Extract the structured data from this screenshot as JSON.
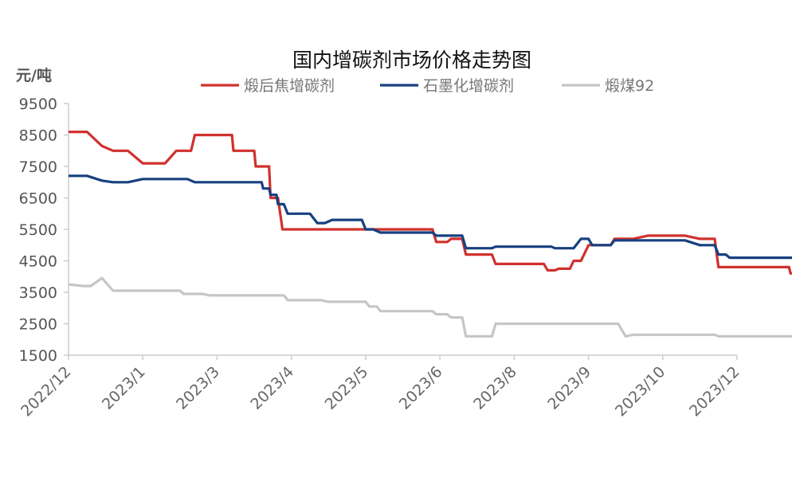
{
  "chart_data": {
    "type": "line",
    "title": "国内增碳剂市场价格走势图",
    "ylabel": "元/吨",
    "ylim": [
      1500,
      9500
    ],
    "yticks": [
      1500,
      2500,
      3500,
      4500,
      5500,
      6500,
      7500,
      8500,
      9500
    ],
    "xticks": [
      "2022/12",
      "2023/1",
      "2023/3",
      "2023/4",
      "2023/5",
      "2023/6",
      "2023/8",
      "2023/9",
      "2023/10",
      "2023/12"
    ],
    "legend_position": "top",
    "grid": false,
    "series": [
      {
        "name": "煅后焦增碳剂",
        "color": "#d0312d",
        "points": [
          [
            0,
            8600
          ],
          [
            0.25,
            8600
          ],
          [
            0.45,
            8150
          ],
          [
            0.6,
            8000
          ],
          [
            0.8,
            8000
          ],
          [
            1.0,
            7600
          ],
          [
            1.3,
            7600
          ],
          [
            1.45,
            8000
          ],
          [
            1.65,
            8000
          ],
          [
            1.7,
            8500
          ],
          [
            2.0,
            8500
          ],
          [
            2.2,
            8500
          ],
          [
            2.22,
            8000
          ],
          [
            2.5,
            8000
          ],
          [
            2.52,
            7500
          ],
          [
            2.7,
            7500
          ],
          [
            2.72,
            6500
          ],
          [
            2.82,
            6500
          ],
          [
            2.88,
            5500
          ],
          [
            3.0,
            5500
          ],
          [
            3.3,
            5500
          ],
          [
            3.8,
            5500
          ],
          [
            4.0,
            5500
          ],
          [
            4.2,
            5500
          ],
          [
            4.6,
            5500
          ],
          [
            4.9,
            5500
          ],
          [
            4.95,
            5100
          ],
          [
            5.1,
            5100
          ],
          [
            5.15,
            5200
          ],
          [
            5.3,
            5200
          ],
          [
            5.35,
            4700
          ],
          [
            5.7,
            4700
          ],
          [
            5.75,
            4400
          ],
          [
            6.1,
            4400
          ],
          [
            6.3,
            4400
          ],
          [
            6.4,
            4400
          ],
          [
            6.45,
            4200
          ],
          [
            6.55,
            4200
          ],
          [
            6.6,
            4250
          ],
          [
            6.75,
            4250
          ],
          [
            6.8,
            4500
          ],
          [
            6.9,
            4500
          ],
          [
            7.0,
            5000
          ],
          [
            7.2,
            5000
          ],
          [
            7.3,
            5000
          ],
          [
            7.35,
            5200
          ],
          [
            7.6,
            5200
          ],
          [
            7.8,
            5300
          ],
          [
            8.3,
            5300
          ],
          [
            8.5,
            5200
          ],
          [
            8.7,
            5200
          ],
          [
            8.75,
            4300
          ],
          [
            9.7,
            4300
          ],
          [
            9.72,
            4100
          ],
          [
            9.85,
            4100
          ]
        ]
      },
      {
        "name": "石墨化增碳剂",
        "color": "#17407f",
        "points": [
          [
            0,
            7200
          ],
          [
            0.25,
            7200
          ],
          [
            0.45,
            7050
          ],
          [
            0.6,
            7000
          ],
          [
            0.8,
            7000
          ],
          [
            1.0,
            7100
          ],
          [
            1.3,
            7100
          ],
          [
            1.6,
            7100
          ],
          [
            1.7,
            7000
          ],
          [
            2.0,
            7000
          ],
          [
            2.6,
            7000
          ],
          [
            2.62,
            6800
          ],
          [
            2.7,
            6800
          ],
          [
            2.72,
            6600
          ],
          [
            2.8,
            6600
          ],
          [
            2.82,
            6300
          ],
          [
            2.9,
            6300
          ],
          [
            2.95,
            6000
          ],
          [
            3.0,
            6000
          ],
          [
            3.25,
            6000
          ],
          [
            3.35,
            5700
          ],
          [
            3.45,
            5700
          ],
          [
            3.55,
            5800
          ],
          [
            3.8,
            5800
          ],
          [
            3.95,
            5800
          ],
          [
            4.0,
            5500
          ],
          [
            4.1,
            5500
          ],
          [
            4.2,
            5400
          ],
          [
            4.6,
            5400
          ],
          [
            4.9,
            5400
          ],
          [
            4.95,
            5300
          ],
          [
            5.3,
            5300
          ],
          [
            5.35,
            4900
          ],
          [
            5.7,
            4900
          ],
          [
            5.75,
            4950
          ],
          [
            6.5,
            4950
          ],
          [
            6.55,
            4900
          ],
          [
            6.8,
            4900
          ],
          [
            6.9,
            5200
          ],
          [
            7.0,
            5200
          ],
          [
            7.05,
            5000
          ],
          [
            7.3,
            5000
          ],
          [
            7.35,
            5150
          ],
          [
            8.3,
            5150
          ],
          [
            8.5,
            5000
          ],
          [
            8.7,
            5000
          ],
          [
            8.75,
            4700
          ],
          [
            8.85,
            4700
          ],
          [
            8.9,
            4600
          ],
          [
            9.85,
            4600
          ]
        ]
      },
      {
        "name": "煅煤92",
        "color": "#c6c6c6",
        "points": [
          [
            0,
            3750
          ],
          [
            0.2,
            3700
          ],
          [
            0.3,
            3700
          ],
          [
            0.45,
            3950
          ],
          [
            0.6,
            3550
          ],
          [
            0.8,
            3550
          ],
          [
            1.5,
            3550
          ],
          [
            1.55,
            3450
          ],
          [
            1.8,
            3450
          ],
          [
            1.9,
            3400
          ],
          [
            2.5,
            3400
          ],
          [
            2.9,
            3400
          ],
          [
            2.95,
            3250
          ],
          [
            3.4,
            3250
          ],
          [
            3.5,
            3200
          ],
          [
            3.8,
            3200
          ],
          [
            4.0,
            3200
          ],
          [
            4.05,
            3050
          ],
          [
            4.15,
            3050
          ],
          [
            4.2,
            2900
          ],
          [
            4.6,
            2900
          ],
          [
            4.9,
            2900
          ],
          [
            4.95,
            2800
          ],
          [
            5.1,
            2800
          ],
          [
            5.15,
            2700
          ],
          [
            5.3,
            2700
          ],
          [
            5.35,
            2100
          ],
          [
            5.7,
            2100
          ],
          [
            5.75,
            2500
          ],
          [
            6.1,
            2500
          ],
          [
            6.8,
            2500
          ],
          [
            7.0,
            2500
          ],
          [
            7.4,
            2500
          ],
          [
            7.5,
            2100
          ],
          [
            7.6,
            2150
          ],
          [
            8.1,
            2150
          ],
          [
            8.7,
            2150
          ],
          [
            8.75,
            2100
          ],
          [
            9.85,
            2100
          ]
        ]
      }
    ]
  }
}
